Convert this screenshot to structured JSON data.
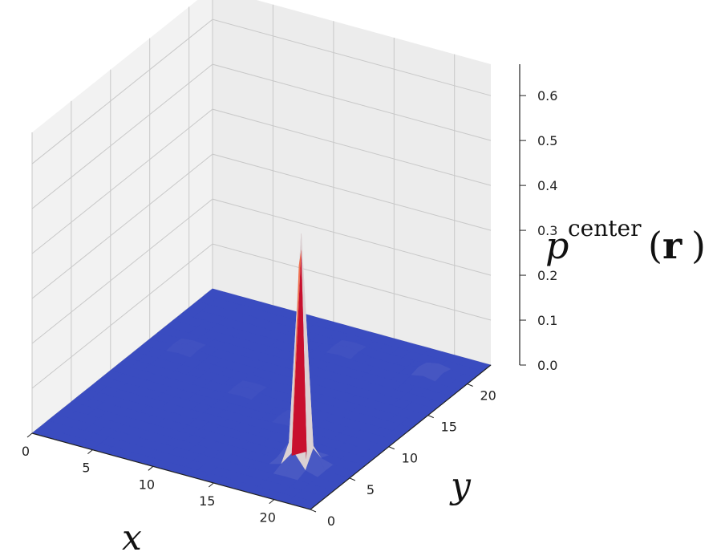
{
  "chart_data": {
    "type": "surface3d",
    "title": "",
    "xlabel": "x",
    "ylabel": "y",
    "zlabel": {
      "base": "p",
      "superscript": "center",
      "open_paren": "(",
      "argument": "r",
      "close_paren": ")"
    },
    "xlim": [
      0,
      23
    ],
    "ylim": [
      0,
      23
    ],
    "zlim": [
      0,
      0.67
    ],
    "x_ticks": [
      0,
      5,
      10,
      15,
      20
    ],
    "y_ticks": [
      0,
      5,
      10,
      15,
      20
    ],
    "z_ticks": [
      "0.0",
      "0.1",
      "0.2",
      "0.3",
      "0.4",
      "0.5",
      "0.6"
    ],
    "z_tick_values": [
      0.0,
      0.1,
      0.2,
      0.3,
      0.4,
      0.5,
      0.6
    ],
    "grid": true,
    "colormap": "coolwarm",
    "peak": {
      "x": 19,
      "y": 5,
      "z": 0.48
    },
    "minor_bumps": [
      {
        "x": 19,
        "y": 5,
        "z": 0.035
      },
      {
        "x": 3,
        "y": 15,
        "z": 0.01
      },
      {
        "x": 13,
        "y": 20,
        "z": 0.01
      },
      {
        "x": 20,
        "y": 20,
        "z": 0.02
      },
      {
        "x": 10,
        "y": 12,
        "z": 0.008
      },
      {
        "x": 15,
        "y": 10,
        "z": 0.008
      }
    ],
    "colors": {
      "surface_low": "#3a4cc0",
      "surface_high": "#b40426",
      "pane": "#f2f2f2",
      "pane_line": "#c8c8c8",
      "axis": "#222222"
    }
  }
}
